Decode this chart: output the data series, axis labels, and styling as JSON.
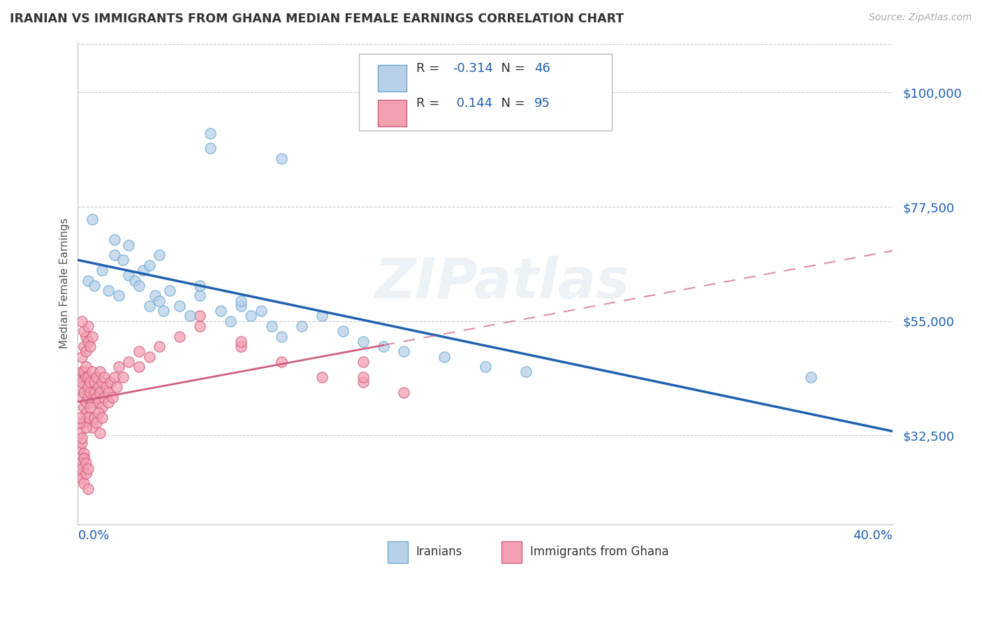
{
  "title": "IRANIAN VS IMMIGRANTS FROM GHANA MEDIAN FEMALE EARNINGS CORRELATION CHART",
  "source": "Source: ZipAtlas.com",
  "ylabel": "Median Female Earnings",
  "ytick_labels": [
    "$32,500",
    "$55,000",
    "$77,500",
    "$100,000"
  ],
  "ytick_values": [
    32500,
    55000,
    77500,
    100000
  ],
  "xmin": 0.0,
  "xmax": 0.4,
  "ymin": 15000,
  "ymax": 110000,
  "watermark": "ZIPatlas",
  "iran_R": -0.314,
  "iran_N": 46,
  "ghana_R": 0.144,
  "ghana_N": 95,
  "blue_face": "#b8d0e8",
  "blue_edge": "#6aaad4",
  "blue_line": "#2060b0",
  "pink_face": "#f4a0b0",
  "pink_edge": "#d06080",
  "pink_line": "#d06080",
  "legend_text_color": "#2060b0",
  "legend_label_color": "#333333",
  "axis_label_color": "#2060b0",
  "title_color": "#333333",
  "grid_color": "#cccccc",
  "ylabel_color": "#555555",
  "bottom_label_Iranians": "Iranians",
  "bottom_label_Ghana": "Immigrants from Ghana",
  "iran_x": [
    0.005,
    0.008,
    0.012,
    0.015,
    0.018,
    0.02,
    0.022,
    0.025,
    0.028,
    0.03,
    0.032,
    0.035,
    0.038,
    0.04,
    0.042,
    0.045,
    0.05,
    0.055,
    0.06,
    0.065,
    0.07,
    0.075,
    0.08,
    0.085,
    0.09,
    0.095,
    0.1,
    0.11,
    0.12,
    0.13,
    0.14,
    0.15,
    0.16,
    0.18,
    0.2,
    0.22,
    0.007,
    0.018,
    0.035,
    0.025,
    0.04,
    0.06,
    0.08,
    0.36,
    0.065,
    0.1
  ],
  "iran_y": [
    63000,
    62000,
    65000,
    61000,
    68000,
    60000,
    67000,
    64000,
    63000,
    62000,
    65000,
    58000,
    60000,
    59000,
    57000,
    61000,
    58000,
    56000,
    60000,
    89000,
    57000,
    55000,
    58000,
    56000,
    57000,
    54000,
    52000,
    54000,
    56000,
    53000,
    51000,
    50000,
    49000,
    48000,
    46000,
    45000,
    75000,
    71000,
    66000,
    70000,
    68000,
    62000,
    59000,
    44000,
    92000,
    87000
  ],
  "ghana_x": [
    0.001,
    0.001,
    0.002,
    0.002,
    0.002,
    0.003,
    0.003,
    0.003,
    0.004,
    0.004,
    0.004,
    0.005,
    0.005,
    0.005,
    0.006,
    0.006,
    0.007,
    0.007,
    0.008,
    0.008,
    0.009,
    0.009,
    0.01,
    0.01,
    0.011,
    0.011,
    0.012,
    0.012,
    0.013,
    0.013,
    0.014,
    0.015,
    0.015,
    0.016,
    0.017,
    0.018,
    0.019,
    0.02,
    0.022,
    0.025,
    0.003,
    0.004,
    0.005,
    0.006,
    0.007,
    0.008,
    0.009,
    0.01,
    0.011,
    0.012,
    0.002,
    0.003,
    0.004,
    0.005,
    0.003,
    0.004,
    0.005,
    0.006,
    0.007,
    0.002,
    0.001,
    0.002,
    0.003,
    0.001,
    0.002,
    0.003,
    0.004,
    0.001,
    0.002,
    0.001,
    0.03,
    0.035,
    0.04,
    0.05,
    0.06,
    0.08,
    0.1,
    0.12,
    0.14,
    0.16,
    0.001,
    0.001,
    0.002,
    0.002,
    0.003,
    0.003,
    0.004,
    0.004,
    0.005,
    0.005,
    0.14,
    0.14,
    0.03,
    0.06,
    0.08
  ],
  "ghana_y": [
    44000,
    42000,
    45000,
    40000,
    43000,
    41000,
    45000,
    38000,
    44000,
    39000,
    46000,
    42000,
    40000,
    44000,
    41000,
    43000,
    39000,
    45000,
    41000,
    43000,
    40000,
    44000,
    42000,
    39000,
    41000,
    45000,
    43000,
    38000,
    40000,
    44000,
    42000,
    41000,
    39000,
    43000,
    40000,
    44000,
    42000,
    46000,
    44000,
    47000,
    35000,
    37000,
    36000,
    38000,
    34000,
    36000,
    35000,
    37000,
    33000,
    36000,
    48000,
    50000,
    52000,
    51000,
    53000,
    49000,
    54000,
    50000,
    52000,
    55000,
    30000,
    31000,
    29000,
    33000,
    32000,
    28000,
    34000,
    35000,
    27000,
    36000,
    46000,
    48000,
    50000,
    52000,
    54000,
    50000,
    47000,
    44000,
    43000,
    41000,
    25000,
    27000,
    24000,
    26000,
    23000,
    28000,
    25000,
    27000,
    22000,
    26000,
    47000,
    44000,
    49000,
    56000,
    51000
  ]
}
